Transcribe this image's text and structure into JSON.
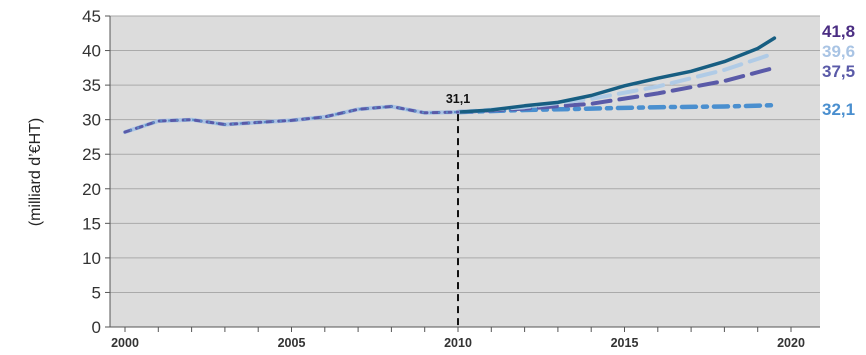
{
  "chart_data": {
    "type": "line",
    "title": "",
    "xlabel": "",
    "ylabel": "(milliard d’€HT)",
    "xlim": [
      2000,
      2020
    ],
    "ylim": [
      0,
      45
    ],
    "x_ticks": [
      "2000",
      "2005",
      "2010",
      "2015",
      "2020"
    ],
    "y_ticks": [
      "0",
      "5",
      "10",
      "15",
      "20",
      "25",
      "30",
      "35",
      "40",
      "45"
    ],
    "grid": true,
    "legend": "none",
    "background_color": "#dcdcdc",
    "grid_color": "#aaaaaa",
    "history": {
      "color": "#5b8fc7",
      "x": [
        2000,
        2001,
        2002,
        2003,
        2004,
        2005,
        2006,
        2007,
        2008,
        2009,
        2010
      ],
      "values": [
        28.2,
        29.8,
        30.0,
        29.3,
        29.6,
        29.9,
        30.4,
        31.5,
        31.9,
        31.0,
        31.1
      ]
    },
    "series": [
      {
        "label_text": "41,8",
        "color": "#175e82",
        "label_color": "#4b2e83",
        "dash": "solid",
        "x": [
          2010,
          2011,
          2012,
          2013,
          2014,
          2015,
          2016,
          2017,
          2018,
          2019,
          2019.5
        ],
        "values": [
          31.1,
          31.4,
          32.0,
          32.5,
          33.5,
          34.9,
          36.0,
          37.0,
          38.4,
          40.3,
          41.8
        ]
      },
      {
        "label_text": "39,6",
        "color": "#b0cbe6",
        "label_color": "#a9c4e4",
        "dash": "long",
        "x": [
          2010,
          2012,
          2014,
          2016,
          2018,
          2019.5
        ],
        "values": [
          31.1,
          31.8,
          33.0,
          34.8,
          37.2,
          39.6
        ]
      },
      {
        "label_text": "37,5",
        "color": "#5a5aa8",
        "label_color": "#5a5aa8",
        "dash": "long",
        "x": [
          2010,
          2012,
          2014,
          2016,
          2018,
          2019.5
        ],
        "values": [
          31.1,
          31.6,
          32.3,
          33.8,
          35.6,
          37.5
        ]
      },
      {
        "label_text": "32,1",
        "color": "#4a8fcf",
        "label_color": "#4a8fcf",
        "dash": "dashdot",
        "x": [
          2010,
          2012,
          2014,
          2016,
          2018,
          2019.5
        ],
        "values": [
          31.1,
          31.4,
          31.6,
          31.8,
          31.9,
          32.1
        ]
      }
    ],
    "annotations": [
      {
        "text": "31,1",
        "x": 2010,
        "y": 31.1,
        "vertical_line_to_axis": true
      }
    ]
  }
}
